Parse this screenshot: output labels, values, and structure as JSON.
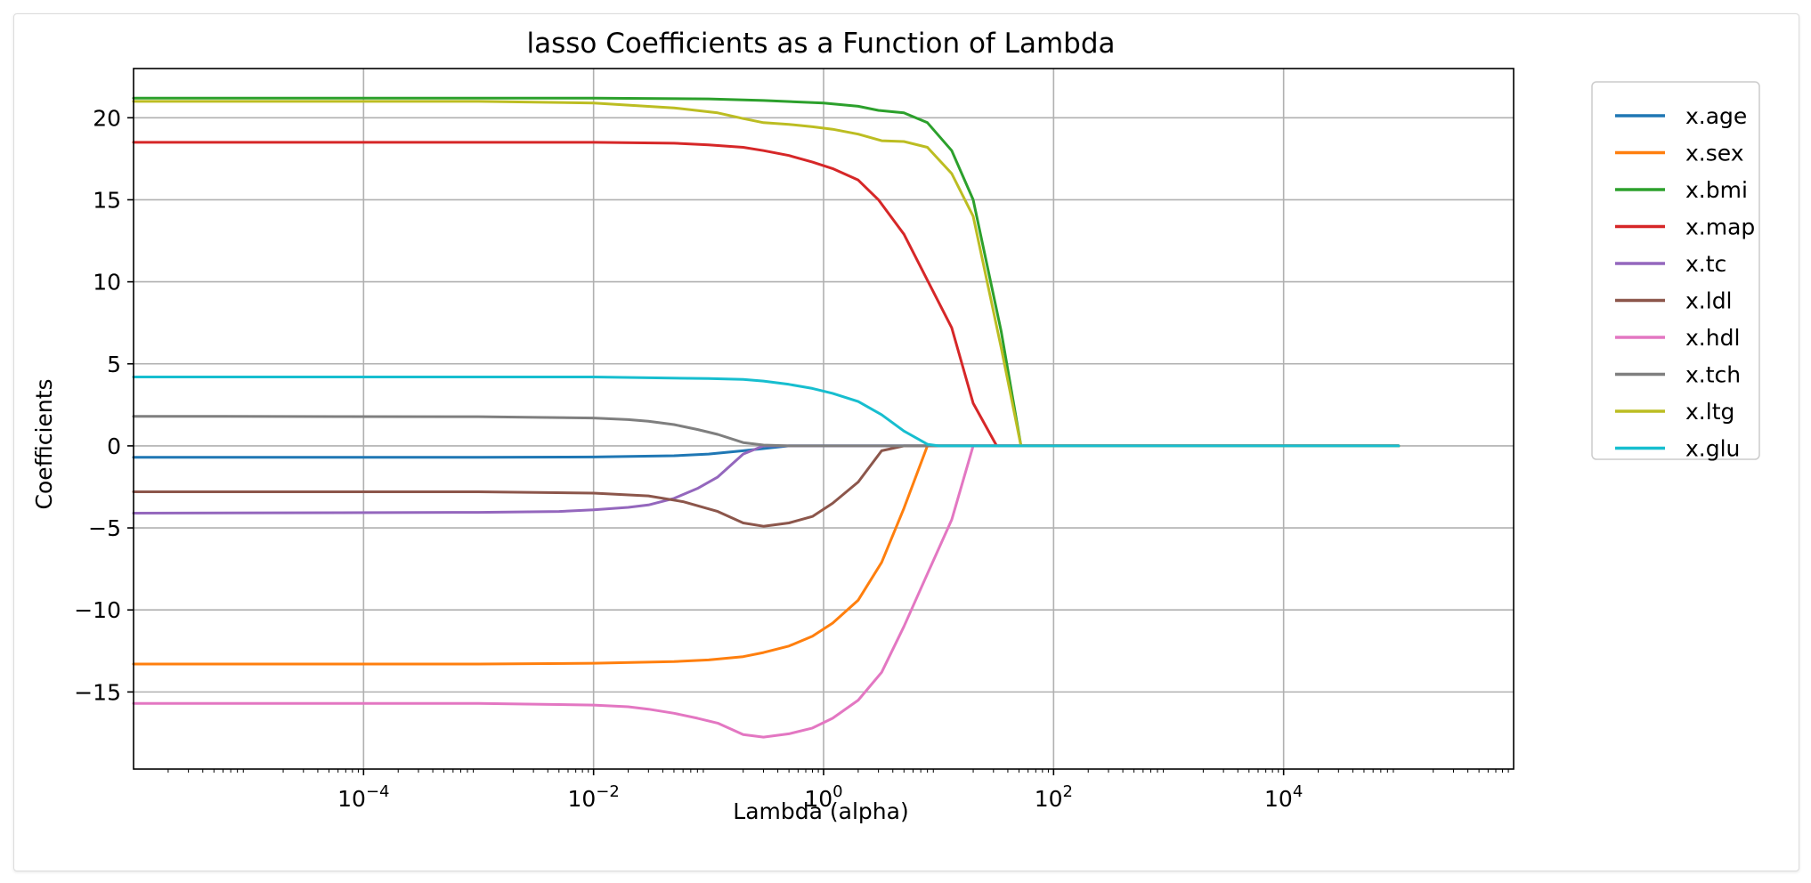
{
  "chart_data": {
    "type": "line",
    "title": "lasso Coefficients as a Function of Lambda",
    "xlabel": "Lambda (alpha)",
    "ylabel": "Coefficients",
    "xscale": "log",
    "xlim": [
      1e-06,
      1000000
    ],
    "ylim": [
      -19.7,
      23.0
    ],
    "x_ticks": [
      {
        "value": 0.0001,
        "base": "10",
        "exp": "−4"
      },
      {
        "value": 0.01,
        "base": "10",
        "exp": "−2"
      },
      {
        "value": 1,
        "base": "10",
        "exp": "0"
      },
      {
        "value": 100,
        "base": "10",
        "exp": "2"
      },
      {
        "value": 10000,
        "base": "10",
        "exp": "4"
      }
    ],
    "y_ticks": [
      {
        "value": 20,
        "label": "20"
      },
      {
        "value": 15,
        "label": "15"
      },
      {
        "value": 10,
        "label": "10"
      },
      {
        "value": 5,
        "label": "5"
      },
      {
        "value": 0,
        "label": "0"
      },
      {
        "value": -5,
        "label": "−5"
      },
      {
        "value": -10,
        "label": "−10"
      },
      {
        "value": -15,
        "label": "−15"
      }
    ],
    "grid": true,
    "legend_position": "outside-right-top",
    "series": [
      {
        "name": "x.age",
        "color": "#1f77b4",
        "points": [
          [
            1e-06,
            -0.7
          ],
          [
            0.001,
            -0.7
          ],
          [
            0.01,
            -0.68
          ],
          [
            0.05,
            -0.6
          ],
          [
            0.1,
            -0.5
          ],
          [
            0.2,
            -0.3
          ],
          [
            0.5,
            0
          ],
          [
            100000,
            0
          ]
        ]
      },
      {
        "name": "x.sex",
        "color": "#ff7f0e",
        "points": [
          [
            1e-06,
            -13.3
          ],
          [
            0.001,
            -13.3
          ],
          [
            0.01,
            -13.25
          ],
          [
            0.05,
            -13.15
          ],
          [
            0.1,
            -13.05
          ],
          [
            0.2,
            -12.85
          ],
          [
            0.3,
            -12.6
          ],
          [
            0.5,
            -12.2
          ],
          [
            0.8,
            -11.6
          ],
          [
            1.2,
            -10.8
          ],
          [
            2,
            -9.4
          ],
          [
            3.2,
            -7.1
          ],
          [
            5,
            -3.8
          ],
          [
            8,
            0
          ],
          [
            100000,
            0
          ]
        ]
      },
      {
        "name": "x.bmi",
        "color": "#2ca02c",
        "points": [
          [
            1e-06,
            21.2
          ],
          [
            0.01,
            21.2
          ],
          [
            0.1,
            21.15
          ],
          [
            0.3,
            21.05
          ],
          [
            1,
            20.9
          ],
          [
            2,
            20.7
          ],
          [
            3,
            20.45
          ],
          [
            5,
            20.3
          ],
          [
            8,
            19.7
          ],
          [
            13,
            18
          ],
          [
            20,
            15
          ],
          [
            35,
            7
          ],
          [
            52,
            0
          ],
          [
            100000,
            0
          ]
        ]
      },
      {
        "name": "x.map",
        "color": "#d62728",
        "points": [
          [
            1e-06,
            18.5
          ],
          [
            0.01,
            18.5
          ],
          [
            0.05,
            18.45
          ],
          [
            0.1,
            18.35
          ],
          [
            0.2,
            18.2
          ],
          [
            0.3,
            18
          ],
          [
            0.5,
            17.7
          ],
          [
            0.8,
            17.3
          ],
          [
            1.2,
            16.9
          ],
          [
            2,
            16.2
          ],
          [
            3,
            15
          ],
          [
            5,
            12.9
          ],
          [
            8,
            10.1
          ],
          [
            13,
            7.2
          ],
          [
            20,
            2.6
          ],
          [
            32,
            0
          ],
          [
            100000,
            0
          ]
        ]
      },
      {
        "name": "x.tc",
        "color": "#9467bd",
        "points": [
          [
            1e-06,
            -4.1
          ],
          [
            0.001,
            -4.05
          ],
          [
            0.005,
            -4.0
          ],
          [
            0.01,
            -3.9
          ],
          [
            0.02,
            -3.75
          ],
          [
            0.03,
            -3.6
          ],
          [
            0.05,
            -3.2
          ],
          [
            0.08,
            -2.6
          ],
          [
            0.12,
            -1.9
          ],
          [
            0.2,
            -0.5
          ],
          [
            0.3,
            0
          ],
          [
            100000,
            0
          ]
        ]
      },
      {
        "name": "x.ldl",
        "color": "#8c564b",
        "points": [
          [
            1e-06,
            -2.8
          ],
          [
            0.001,
            -2.8
          ],
          [
            0.01,
            -2.88
          ],
          [
            0.03,
            -3.05
          ],
          [
            0.06,
            -3.4
          ],
          [
            0.12,
            -4.0
          ],
          [
            0.2,
            -4.7
          ],
          [
            0.3,
            -4.9
          ],
          [
            0.5,
            -4.7
          ],
          [
            0.8,
            -4.3
          ],
          [
            1.2,
            -3.5
          ],
          [
            2,
            -2.2
          ],
          [
            3.2,
            -0.3
          ],
          [
            5,
            0
          ],
          [
            100000,
            0
          ]
        ]
      },
      {
        "name": "x.hdl",
        "color": "#e377c2",
        "points": [
          [
            1e-06,
            -15.7
          ],
          [
            0.001,
            -15.7
          ],
          [
            0.01,
            -15.8
          ],
          [
            0.02,
            -15.9
          ],
          [
            0.03,
            -16.05
          ],
          [
            0.05,
            -16.3
          ],
          [
            0.08,
            -16.6
          ],
          [
            0.12,
            -16.9
          ],
          [
            0.2,
            -17.6
          ],
          [
            0.3,
            -17.75
          ],
          [
            0.5,
            -17.55
          ],
          [
            0.8,
            -17.2
          ],
          [
            1.2,
            -16.6
          ],
          [
            2,
            -15.5
          ],
          [
            3.2,
            -13.8
          ],
          [
            5,
            -11
          ],
          [
            8,
            -7.8
          ],
          [
            13,
            -4.5
          ],
          [
            20,
            0
          ],
          [
            100000,
            0
          ]
        ]
      },
      {
        "name": "x.tch",
        "color": "#7f7f7f",
        "points": [
          [
            1e-06,
            1.8
          ],
          [
            0.001,
            1.78
          ],
          [
            0.01,
            1.7
          ],
          [
            0.02,
            1.6
          ],
          [
            0.03,
            1.5
          ],
          [
            0.05,
            1.3
          ],
          [
            0.08,
            1.0
          ],
          [
            0.12,
            0.7
          ],
          [
            0.2,
            0.2
          ],
          [
            0.3,
            0.05
          ],
          [
            0.5,
            0
          ],
          [
            100000,
            0
          ]
        ]
      },
      {
        "name": "x.ltg",
        "color": "#bcbd22",
        "points": [
          [
            1e-06,
            21.0
          ],
          [
            0.001,
            21.0
          ],
          [
            0.01,
            20.9
          ],
          [
            0.05,
            20.6
          ],
          [
            0.12,
            20.3
          ],
          [
            0.2,
            19.95
          ],
          [
            0.3,
            19.7
          ],
          [
            0.5,
            19.6
          ],
          [
            0.8,
            19.45
          ],
          [
            1.2,
            19.3
          ],
          [
            2,
            19.0
          ],
          [
            3.2,
            18.6
          ],
          [
            5,
            18.55
          ],
          [
            8,
            18.2
          ],
          [
            13,
            16.6
          ],
          [
            20,
            14
          ],
          [
            35,
            6
          ],
          [
            52,
            0
          ],
          [
            100000,
            0
          ]
        ]
      },
      {
        "name": "x.glu",
        "color": "#17becf",
        "points": [
          [
            1e-06,
            4.2
          ],
          [
            0.01,
            4.2
          ],
          [
            0.1,
            4.1
          ],
          [
            0.2,
            4.05
          ],
          [
            0.3,
            3.95
          ],
          [
            0.5,
            3.75
          ],
          [
            0.8,
            3.5
          ],
          [
            1.2,
            3.2
          ],
          [
            2,
            2.7
          ],
          [
            3.2,
            1.9
          ],
          [
            5,
            0.9
          ],
          [
            8,
            0.1
          ],
          [
            10,
            0
          ],
          [
            100000,
            0
          ]
        ]
      }
    ]
  }
}
